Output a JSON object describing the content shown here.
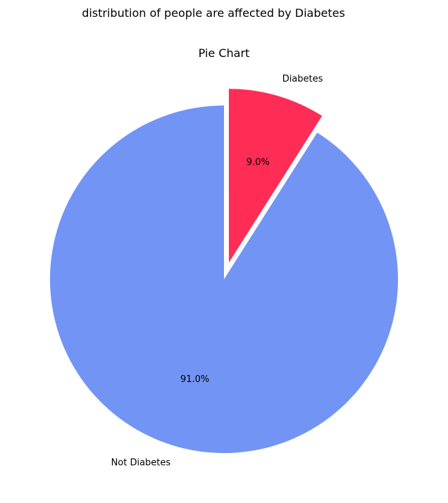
{
  "chart_data": {
    "type": "pie",
    "suptitle": "distribution of people are affected by Diabetes",
    "title": "Pie Chart",
    "start_angle_deg": 90,
    "direction": "clockwise",
    "slices": [
      {
        "label": "Diabetes",
        "value": 9.0,
        "pct_label": "9.0%",
        "color": "#ff2d55",
        "exploded": true
      },
      {
        "label": "Not Diabetes",
        "value": 91.0,
        "pct_label": "91.0%",
        "color": "#7294f4",
        "exploded": false
      }
    ]
  }
}
